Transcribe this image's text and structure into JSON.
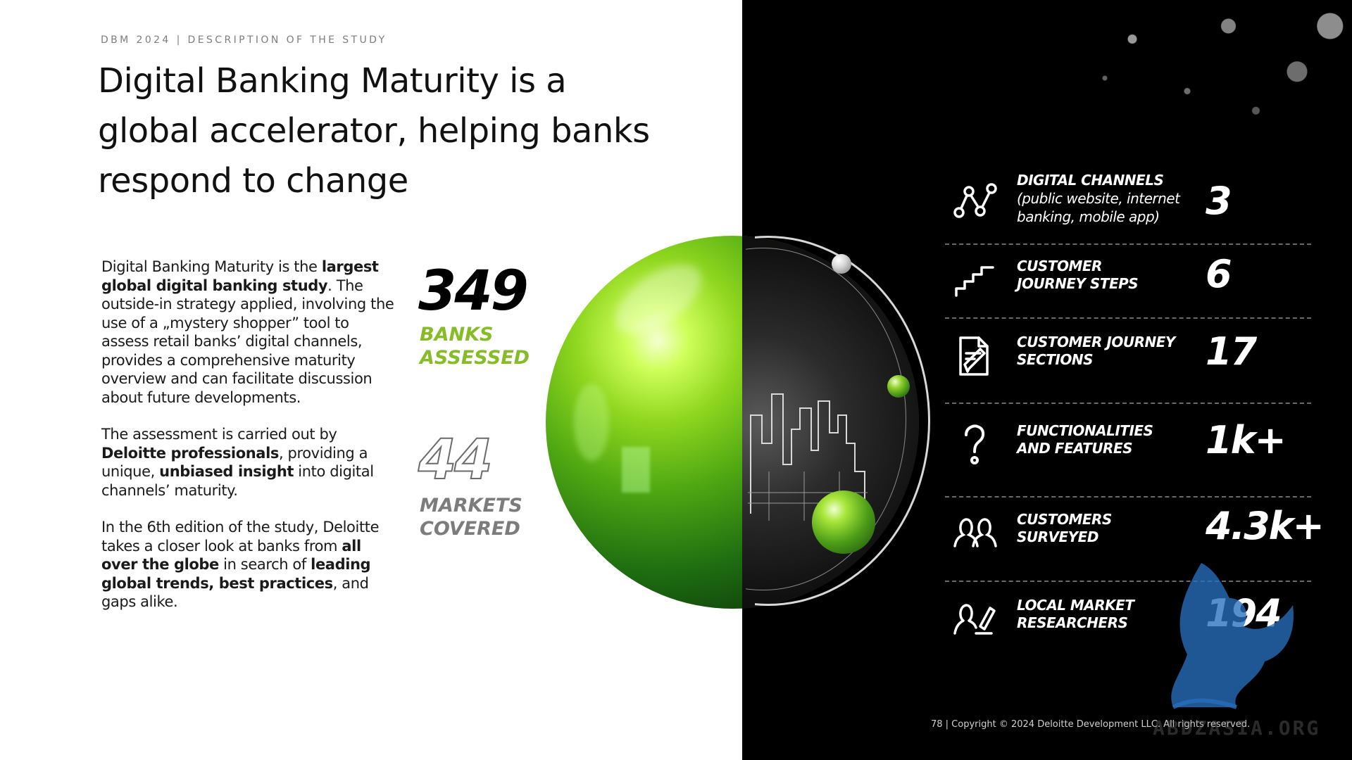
{
  "header": {
    "eyebrow": "DBM 2024 | DESCRIPTION OF THE STUDY",
    "title": "Digital Banking Maturity is a global accelerator, helping banks respond to change"
  },
  "body": {
    "p1": [
      {
        "t": "Digital Banking Maturity is the ",
        "b": false
      },
      {
        "t": "largest global digital banking study",
        "b": true
      },
      {
        "t": ". The outside-in strategy applied, involving the use of a „mystery shopper” tool to assess retail banks’ digital channels, provides a comprehensive maturity overview and can facilitate discussion about future developments.",
        "b": false
      }
    ],
    "p2": [
      {
        "t": "The assessment is carried out by ",
        "b": false
      },
      {
        "t": "Deloitte professionals",
        "b": true
      },
      {
        "t": ", providing a unique, ",
        "b": false
      },
      {
        "t": "unbiased insight",
        "b": true
      },
      {
        "t": " into digital channels’ maturity.",
        "b": false
      }
    ],
    "p3": [
      {
        "t": "In the 6th edition of the study, Deloitte takes a closer look at banks from ",
        "b": false
      },
      {
        "t": "all over the globe",
        "b": true
      },
      {
        "t": " in search of ",
        "b": false
      },
      {
        "t": "leading global trends, best practices",
        "b": true
      },
      {
        "t": ", and gaps alike.",
        "b": false
      }
    ]
  },
  "stats": {
    "banks": {
      "value": "349",
      "label_line1": "BANKS",
      "label_line2": "ASSESSED",
      "color": "#86bc25"
    },
    "markets": {
      "value": "44",
      "label_line1": "MARKETS",
      "label_line2": "COVERED"
    }
  },
  "metrics": [
    {
      "icon": "network-icon",
      "label_line1": "DIGITAL CHANNELS",
      "sub_line1": "(public website, internet",
      "sub_line2": "banking, mobile app)",
      "value": "3"
    },
    {
      "icon": "steps-icon",
      "label_line1": "CUSTOMER",
      "label_line2": "JOURNEY STEPS",
      "value": "6"
    },
    {
      "icon": "document-edit-icon",
      "label_line1": "CUSTOMER JOURNEY",
      "label_line2": "SECTIONS",
      "value": "17"
    },
    {
      "icon": "question-mark-icon",
      "label_line1": "FUNCTIONALITIES",
      "label_line2": "AND FEATURES",
      "value": "1k+"
    },
    {
      "icon": "people-icon",
      "label_line1": "CUSTOMERS",
      "label_line2": "SURVEYED",
      "value": "4.3k+"
    },
    {
      "icon": "researcher-icon",
      "label_line1": "LOCAL MARKET",
      "label_line2": "RESEARCHERS",
      "value": "194"
    }
  ],
  "footer": {
    "text": "78 | Copyright © 2024 Deloitte Development LLC. All rights reserved.",
    "watermark": "ABDZASIA.ORG"
  }
}
